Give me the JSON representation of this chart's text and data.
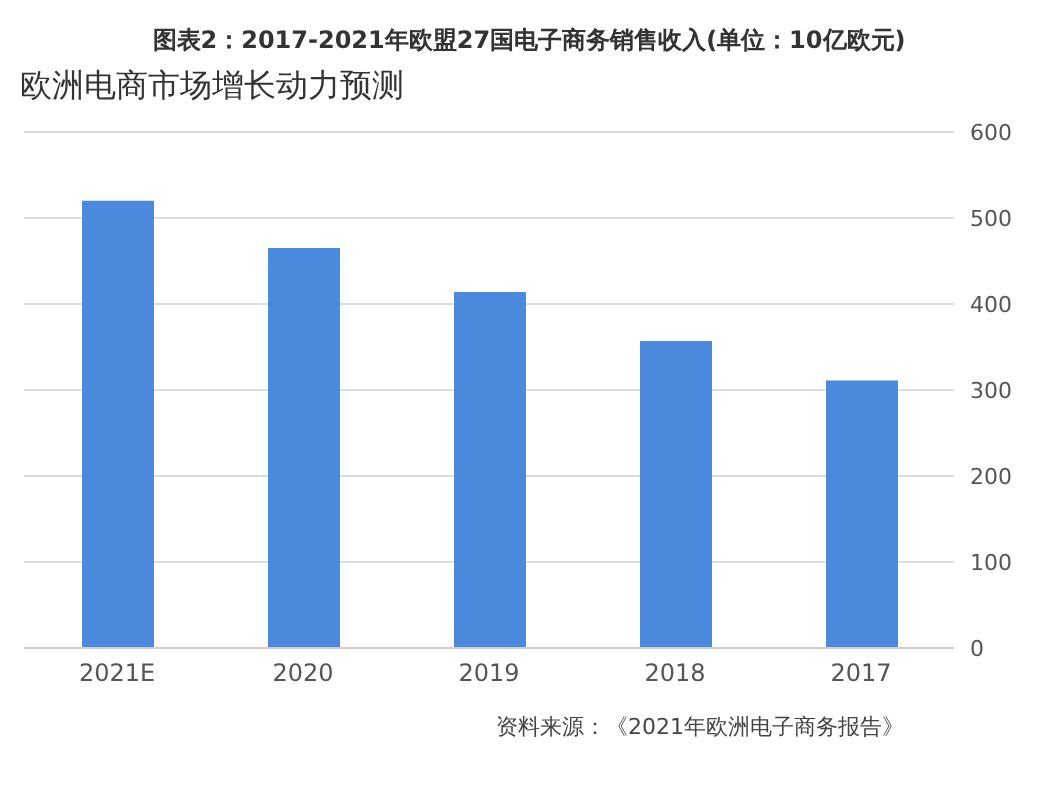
{
  "chart_data": {
    "type": "bar",
    "title": "图表2：2017-2021年欧盟27国电子商务销售收入(单位：10亿欧元)",
    "subtitle": "欧洲电商市场增长动力预测",
    "categories": [
      "2021E",
      "2020",
      "2019",
      "2018",
      "2017"
    ],
    "values": [
      520,
      465,
      414,
      357,
      311
    ],
    "color": "#4a89dc",
    "ylim": [
      0,
      600
    ],
    "yticks": [
      0,
      100,
      200,
      300,
      400,
      500,
      600
    ],
    "grid": "y",
    "annotations": [
      "资料来源：《2021年欧洲电子商务报告》"
    ]
  }
}
